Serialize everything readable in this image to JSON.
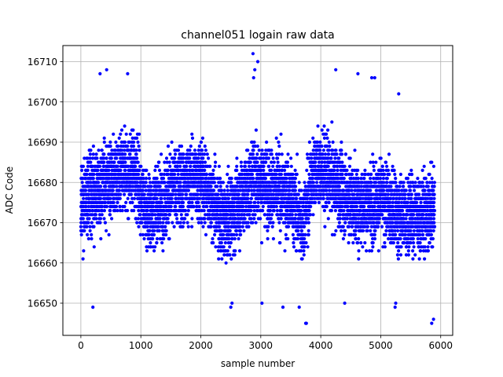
{
  "chart_data": {
    "type": "scatter",
    "title": "channel051 logain raw data",
    "xlabel": "sample number",
    "ylabel": "ADC Code",
    "xlim": [
      -300,
      6200
    ],
    "ylim": [
      16642,
      16714
    ],
    "xticks": [
      0,
      1000,
      2000,
      3000,
      4000,
      5000,
      6000
    ],
    "yticks": [
      16650,
      16660,
      16670,
      16680,
      16690,
      16700,
      16710
    ],
    "grid": true,
    "marker_color": "#0000ff",
    "series": [
      {
        "n_samples": 5900,
        "x_range": [
          0,
          5900
        ],
        "center": 16677,
        "spread": 8.5,
        "band_low": 16658,
        "band_high": 16697,
        "segment_centers": [
          {
            "x": 0,
            "center": 16675
          },
          {
            "x": 400,
            "center": 16680
          },
          {
            "x": 900,
            "center": 16683
          },
          {
            "x": 1100,
            "center": 16672
          },
          {
            "x": 1600,
            "center": 16679
          },
          {
            "x": 2000,
            "center": 16681
          },
          {
            "x": 2400,
            "center": 16670
          },
          {
            "x": 2900,
            "center": 16681
          },
          {
            "x": 3500,
            "center": 16676
          },
          {
            "x": 3700,
            "center": 16670
          },
          {
            "x": 3900,
            "center": 16684
          },
          {
            "x": 4200,
            "center": 16680
          },
          {
            "x": 4600,
            "center": 16674
          },
          {
            "x": 5000,
            "center": 16676
          },
          {
            "x": 5300,
            "center": 16672
          },
          {
            "x": 5900,
            "center": 16673
          }
        ],
        "outliers": [
          [
            2870,
            16712
          ],
          [
            2900,
            16708
          ],
          [
            2950,
            16710
          ],
          [
            4250,
            16708
          ],
          [
            320,
            16707
          ],
          [
            430,
            16708
          ],
          [
            780,
            16707
          ],
          [
            4620,
            16707
          ],
          [
            4850,
            16706
          ],
          [
            4900,
            16706
          ],
          [
            2880,
            16706
          ],
          [
            5300,
            16702
          ],
          [
            3750,
            16645
          ],
          [
            3760,
            16645
          ],
          [
            5850,
            16645
          ],
          [
            5880,
            16646
          ],
          [
            200,
            16649
          ],
          [
            2500,
            16649
          ],
          [
            2520,
            16650
          ],
          [
            3020,
            16650
          ],
          [
            3370,
            16649
          ],
          [
            3640,
            16649
          ],
          [
            5240,
            16649
          ],
          [
            5250,
            16650
          ],
          [
            4400,
            16650
          ]
        ]
      }
    ]
  }
}
